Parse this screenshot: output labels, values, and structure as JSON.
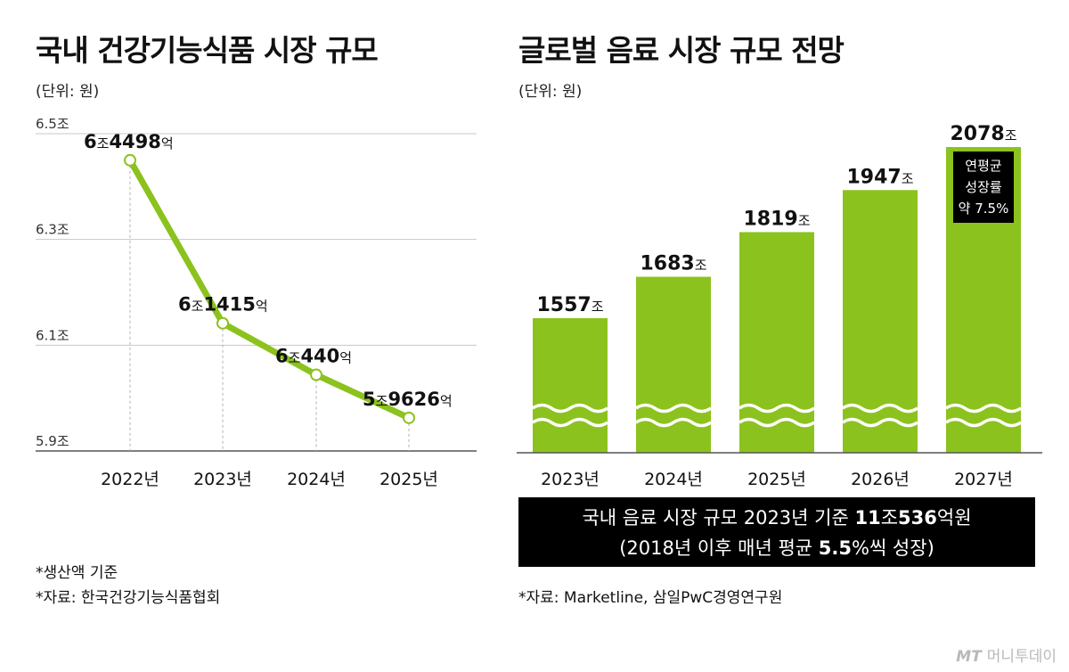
{
  "left": {
    "title": "국내 건강기능식품 시장 규모",
    "unit": "(단위: 원)",
    "chart_data": {
      "type": "line",
      "title": "국내 건강기능식품 시장 규모",
      "unit": "(단위: 원)",
      "x": [
        "2022년",
        "2023년",
        "2024년",
        "2025년"
      ],
      "values": [
        6.4498,
        6.1415,
        6.044,
        5.9626
      ],
      "ylim": [
        5.9,
        6.5
      ],
      "y_ticks": [
        5.9,
        6.1,
        6.3,
        6.5
      ],
      "y_tick_labels": [
        "5.9조",
        "6.1조",
        "6.3조",
        "6.5조"
      ],
      "grid": true,
      "line_color": "#8cc21d",
      "labels": [
        {
          "n1": "6",
          "u1": "조",
          "n2": "4498",
          "u2": "억"
        },
        {
          "n1": "6",
          "u1": "조",
          "n2": "1415",
          "u2": "억"
        },
        {
          "n1": "6",
          "u1": "조",
          "n2": "440",
          "u2": "억"
        },
        {
          "n1": "5",
          "u1": "조",
          "n2": "9626",
          "u2": "억"
        }
      ]
    },
    "notes": [
      "*생산액 기준",
      "*자료: 한국건강기능식품협회"
    ]
  },
  "right": {
    "title": "글로벌 음료 시장 규모 전망",
    "unit": "(단위: 원)",
    "chart_data": {
      "type": "bar",
      "title": "글로벌 음료 시장 규모 전망",
      "unit": "(단위: 원)",
      "categories": [
        "2023년",
        "2024년",
        "2025년",
        "2026년",
        "2027년"
      ],
      "values": [
        1557,
        1683,
        1819,
        1947,
        2078
      ],
      "value_unit": "조",
      "axis_break": true,
      "bar_color": "#8cc21d",
      "annotation": [
        "연평균",
        "성장률",
        "약 7.5%"
      ]
    },
    "summary": {
      "line1_a": "국내 음료 시장 규모 2023년 기준 ",
      "line1_b": "11",
      "line1_c": "조",
      "line1_d": "536",
      "line1_e": "억원",
      "line2_a": "(2018년 이후 매년 평균 ",
      "line2_b": "5.5",
      "line2_c": "%씩 성장)"
    },
    "note": "*자료: Marketline, 삼일PwC경영연구원"
  },
  "logo": {
    "mark": "MT",
    "name": "머니투데이"
  }
}
